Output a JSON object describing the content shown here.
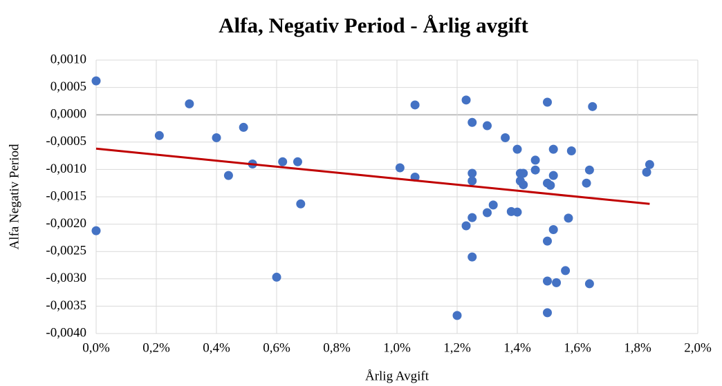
{
  "chart_data": {
    "type": "scatter",
    "title": "Alfa, Negativ Period - Årlig avgift",
    "x_label": "Årlig Avgift",
    "y_label": "Alfa Negativ Period",
    "xlim": [
      0,
      2.0
    ],
    "ylim": [
      -0.004,
      0.001
    ],
    "xticks": [
      {
        "value": 0,
        "label": "0,0%"
      },
      {
        "value": 0.2,
        "label": "0,2%"
      },
      {
        "value": 0.4,
        "label": "0,4%"
      },
      {
        "value": 0.6,
        "label": "0,6%"
      },
      {
        "value": 0.8,
        "label": "0,8%"
      },
      {
        "value": 1.0,
        "label": "1,0%"
      },
      {
        "value": 1.2,
        "label": "1,2%"
      },
      {
        "value": 1.4,
        "label": "1,4%"
      },
      {
        "value": 1.6,
        "label": "1,6%"
      },
      {
        "value": 1.8,
        "label": "1,8%"
      },
      {
        "value": 2.0,
        "label": "2,0%"
      }
    ],
    "yticks": [
      {
        "value": 0.001,
        "label": "0,0010"
      },
      {
        "value": 0.0005,
        "label": "0,0005"
      },
      {
        "value": 0,
        "label": "0,0000"
      },
      {
        "value": -0.0005,
        "label": "-0,0005"
      },
      {
        "value": -0.001,
        "label": "-0,0010"
      },
      {
        "value": -0.0015,
        "label": "-0,0015"
      },
      {
        "value": -0.002,
        "label": "-0,0020"
      },
      {
        "value": -0.0025,
        "label": "-0,0025"
      },
      {
        "value": -0.003,
        "label": "-0,0030"
      },
      {
        "value": -0.0035,
        "label": "-0,0035"
      },
      {
        "value": -0.004,
        "label": "-0,0040"
      }
    ],
    "grid": true,
    "series": [
      {
        "color": "#4472c4",
        "x": [
          0,
          0,
          0.21,
          0.31,
          0.4,
          0.49,
          0.44,
          0.52,
          0.62,
          0.67,
          0.68,
          0.6,
          1.01,
          1.06,
          1.06,
          1.2,
          1.23,
          1.23,
          1.25,
          1.25,
          1.25,
          1.25,
          1.25,
          1.3,
          1.3,
          1.32,
          1.36,
          1.38,
          1.4,
          1.4,
          1.41,
          1.41,
          1.42,
          1.42,
          1.46,
          1.46,
          1.5,
          1.5,
          1.51,
          1.5,
          1.5,
          1.5,
          1.52,
          1.52,
          1.52,
          1.53,
          1.56,
          1.57,
          1.58,
          1.63,
          1.64,
          1.64,
          1.65,
          1.83,
          1.84
        ],
        "values": [
          0.00062,
          -0.00212,
          -0.00038,
          0.0002,
          -0.00042,
          -0.00023,
          -0.00111,
          -0.0009,
          -0.00086,
          -0.00086,
          -0.00163,
          -0.00297,
          -0.00097,
          0.00018,
          -0.00114,
          -0.00367,
          0.00027,
          -0.00203,
          -0.00014,
          -0.00107,
          -0.00121,
          -0.00188,
          -0.0026,
          -0.0002,
          -0.00179,
          -0.00165,
          -0.00042,
          -0.00177,
          -0.00178,
          -0.00063,
          -0.00107,
          -0.00121,
          -0.00107,
          -0.00128,
          -0.00083,
          -0.00101,
          0.00023,
          -0.00125,
          -0.00129,
          -0.00231,
          -0.00304,
          -0.00362,
          -0.00063,
          -0.00111,
          -0.0021,
          -0.00307,
          -0.00285,
          -0.00189,
          -0.00066,
          -0.00125,
          -0.00101,
          -0.00309,
          0.00015,
          -0.00105,
          -0.00091
        ]
      }
    ],
    "trendline": {
      "color": "#c00000",
      "x": [
        0,
        1.84
      ],
      "values": [
        -0.00062,
        -0.00163
      ]
    }
  }
}
